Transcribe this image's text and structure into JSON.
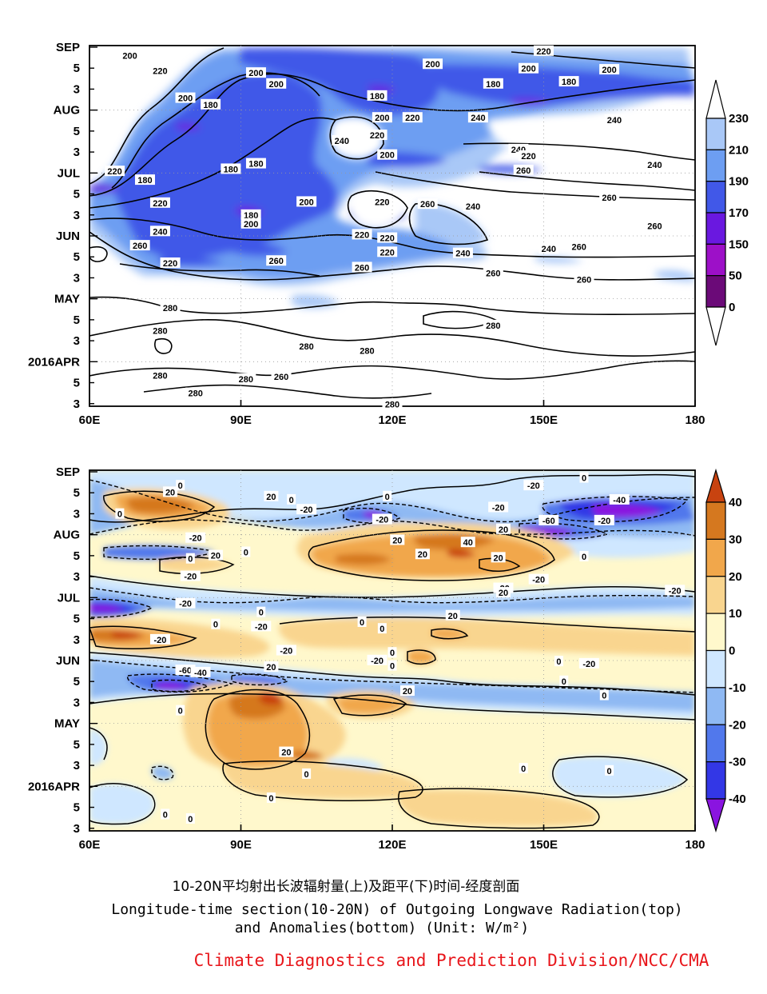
{
  "chart_data": [
    {
      "type": "heatmap",
      "title": "",
      "x_ticks": [
        "60E",
        "90E",
        "120E",
        "150E",
        "180"
      ],
      "y_ticks": [
        "SEP",
        "5",
        "3",
        "AUG",
        "5",
        "3",
        "JUL",
        "5",
        "3",
        "JUN",
        "5",
        "3",
        "MAY",
        "5",
        "3",
        "2016APR",
        "5",
        "3"
      ],
      "colorbar": {
        "levels": [
          "230",
          "210",
          "190",
          "170",
          "150",
          "50",
          "0"
        ],
        "colors": [
          "#ffffff",
          "#a9c8f7",
          "#6d9ef2",
          "#4158e8",
          "#6a18e0",
          "#9d10c8",
          "#6b0a78",
          "#ffffff"
        ]
      },
      "contour_labels": [
        {
          "text": "200",
          "x": 68,
          "y": 9
        },
        {
          "text": "200",
          "x": 93,
          "y": 25
        },
        {
          "text": "220",
          "x": 74,
          "y": 23
        },
        {
          "text": "220",
          "x": 150,
          "y": 5
        },
        {
          "text": "200",
          "x": 147,
          "y": 21
        },
        {
          "text": "180",
          "x": 140,
          "y": 35
        },
        {
          "text": "180",
          "x": 155,
          "y": 33
        },
        {
          "text": "200",
          "x": 163,
          "y": 22
        },
        {
          "text": "200",
          "x": 128,
          "y": 17
        },
        {
          "text": "200",
          "x": 97,
          "y": 35
        },
        {
          "text": "180",
          "x": 117,
          "y": 46
        },
        {
          "text": "200",
          "x": 79,
          "y": 48
        },
        {
          "text": "180",
          "x": 84,
          "y": 54
        },
        {
          "text": "200",
          "x": 118,
          "y": 66
        },
        {
          "text": "220",
          "x": 124,
          "y": 66
        },
        {
          "text": "240",
          "x": 137,
          "y": 66
        },
        {
          "text": "240",
          "x": 164,
          "y": 68
        },
        {
          "text": "240",
          "x": 110,
          "y": 87
        },
        {
          "text": "220",
          "x": 117,
          "y": 82
        },
        {
          "text": "200",
          "x": 119,
          "y": 100
        },
        {
          "text": "240",
          "x": 145,
          "y": 95
        },
        {
          "text": "220",
          "x": 147,
          "y": 101
        },
        {
          "text": "260",
          "x": 146,
          "y": 114
        },
        {
          "text": "240",
          "x": 172,
          "y": 109
        },
        {
          "text": "220",
          "x": 65,
          "y": 115
        },
        {
          "text": "180",
          "x": 71,
          "y": 123
        },
        {
          "text": "180",
          "x": 88,
          "y": 113
        },
        {
          "text": "180",
          "x": 93,
          "y": 108
        },
        {
          "text": "200",
          "x": 103,
          "y": 143
        },
        {
          "text": "220",
          "x": 74,
          "y": 144
        },
        {
          "text": "180",
          "x": 92,
          "y": 155
        },
        {
          "text": "200",
          "x": 92,
          "y": 163
        },
        {
          "text": "240",
          "x": 74,
          "y": 170
        },
        {
          "text": "220",
          "x": 118,
          "y": 143
        },
        {
          "text": "260",
          "x": 127,
          "y": 145
        },
        {
          "text": "240",
          "x": 136,
          "y": 147
        },
        {
          "text": "260",
          "x": 163,
          "y": 139
        },
        {
          "text": "260",
          "x": 172,
          "y": 165
        },
        {
          "text": "220",
          "x": 114,
          "y": 173
        },
        {
          "text": "220",
          "x": 119,
          "y": 176
        },
        {
          "text": "220",
          "x": 119,
          "y": 189
        },
        {
          "text": "240",
          "x": 134,
          "y": 190
        },
        {
          "text": "260",
          "x": 70,
          "y": 183
        },
        {
          "text": "220",
          "x": 76,
          "y": 199
        },
        {
          "text": "260",
          "x": 97,
          "y": 197
        },
        {
          "text": "260",
          "x": 114,
          "y": 203
        },
        {
          "text": "240",
          "x": 151,
          "y": 186
        },
        {
          "text": "260",
          "x": 157,
          "y": 184
        },
        {
          "text": "260",
          "x": 140,
          "y": 208
        },
        {
          "text": "260",
          "x": 158,
          "y": 214
        },
        {
          "text": "280",
          "x": 76,
          "y": 240
        },
        {
          "text": "280",
          "x": 74,
          "y": 261
        },
        {
          "text": "280",
          "x": 140,
          "y": 256
        },
        {
          "text": "280",
          "x": 103,
          "y": 275
        },
        {
          "text": "280",
          "x": 115,
          "y": 279
        },
        {
          "text": "280",
          "x": 74,
          "y": 302
        },
        {
          "text": "280",
          "x": 91,
          "y": 305
        },
        {
          "text": "260",
          "x": 98,
          "y": 303
        },
        {
          "text": "280",
          "x": 81,
          "y": 318
        },
        {
          "text": "280",
          "x": 120,
          "y": 328
        }
      ]
    },
    {
      "type": "heatmap",
      "title": "",
      "x_ticks": [
        "60E",
        "90E",
        "120E",
        "150E",
        "180"
      ],
      "y_ticks": [
        "SEP",
        "5",
        "3",
        "AUG",
        "5",
        "3",
        "JUL",
        "5",
        "3",
        "JUN",
        "5",
        "3",
        "MAY",
        "5",
        "3",
        "2016APR",
        "5",
        "3"
      ],
      "colorbar": {
        "levels": [
          "40",
          "30",
          "20",
          "10",
          "0",
          "-10",
          "-20",
          "-30",
          "-40"
        ],
        "colors": [
          "#c84310",
          "#d5781f",
          "#f1a74b",
          "#f9d58f",
          "#fff8cc",
          "#cfe7ff",
          "#8fb9f3",
          "#5178ec",
          "#3337e6",
          "#8a14e0"
        ]
      },
      "contour_labels": [
        {
          "text": "0",
          "x": 78,
          "y": 14
        },
        {
          "text": "20",
          "x": 76,
          "y": 20
        },
        {
          "text": "20",
          "x": 96,
          "y": 24
        },
        {
          "text": "0",
          "x": 100,
          "y": 27
        },
        {
          "text": "0",
          "x": 66,
          "y": 40
        },
        {
          "text": "-20",
          "x": 103,
          "y": 36
        },
        {
          "text": "0",
          "x": 119,
          "y": 24
        },
        {
          "text": "-20",
          "x": 118,
          "y": 45
        },
        {
          "text": "-20",
          "x": 148,
          "y": 14
        },
        {
          "text": "0",
          "x": 158,
          "y": 7
        },
        {
          "text": "-40",
          "x": 165,
          "y": 27
        },
        {
          "text": "-20",
          "x": 141,
          "y": 34
        },
        {
          "text": "20",
          "x": 142,
          "y": 54
        },
        {
          "text": "-60",
          "x": 151,
          "y": 46
        },
        {
          "text": "-20",
          "x": 162,
          "y": 46
        },
        {
          "text": "-20",
          "x": 81,
          "y": 62
        },
        {
          "text": "20",
          "x": 121,
          "y": 64
        },
        {
          "text": "40",
          "x": 135,
          "y": 66
        },
        {
          "text": "20",
          "x": 126,
          "y": 77
        },
        {
          "text": "20",
          "x": 141,
          "y": 80
        },
        {
          "text": "0",
          "x": 158,
          "y": 79
        },
        {
          "text": "20",
          "x": 85,
          "y": 78
        },
        {
          "text": "0",
          "x": 80,
          "y": 81
        },
        {
          "text": "0",
          "x": 91,
          "y": 75
        },
        {
          "text": "-20",
          "x": 80,
          "y": 97
        },
        {
          "text": "-20",
          "x": 79,
          "y": 122
        },
        {
          "text": "0",
          "x": 85,
          "y": 141
        },
        {
          "text": "0",
          "x": 94,
          "y": 130
        },
        {
          "text": "-20",
          "x": 94,
          "y": 143
        },
        {
          "text": "-20",
          "x": 74,
          "y": 155
        },
        {
          "text": "0",
          "x": 114,
          "y": 139
        },
        {
          "text": "20",
          "x": 132,
          "y": 133
        },
        {
          "text": "0",
          "x": 118,
          "y": 145
        },
        {
          "text": "0",
          "x": 141,
          "y": 108
        },
        {
          "text": "-20",
          "x": 142,
          "y": 108
        },
        {
          "text": "20",
          "x": 142,
          "y": 112
        },
        {
          "text": "-20",
          "x": 149,
          "y": 100
        },
        {
          "text": "-20",
          "x": 176,
          "y": 110
        },
        {
          "text": "-20",
          "x": 99,
          "y": 165
        },
        {
          "text": "-20",
          "x": 117,
          "y": 174
        },
        {
          "text": "0",
          "x": 120,
          "y": 167
        },
        {
          "text": "0",
          "x": 120,
          "y": 179
        },
        {
          "text": "-60",
          "x": 79,
          "y": 183
        },
        {
          "text": "-40",
          "x": 82,
          "y": 185
        },
        {
          "text": "20",
          "x": 96,
          "y": 180
        },
        {
          "text": "20",
          "x": 123,
          "y": 202
        },
        {
          "text": "0",
          "x": 153,
          "y": 175
        },
        {
          "text": "-20",
          "x": 159,
          "y": 177
        },
        {
          "text": "0",
          "x": 154,
          "y": 193
        },
        {
          "text": "0",
          "x": 162,
          "y": 206
        },
        {
          "text": "0",
          "x": 78,
          "y": 220
        },
        {
          "text": "20",
          "x": 99,
          "y": 258
        },
        {
          "text": "0",
          "x": 103,
          "y": 278
        },
        {
          "text": "0",
          "x": 146,
          "y": 273
        },
        {
          "text": "0",
          "x": 163,
          "y": 275
        },
        {
          "text": "0",
          "x": 96,
          "y": 300
        },
        {
          "text": "0",
          "x": 75,
          "y": 315
        },
        {
          "text": "0",
          "x": 80,
          "y": 319
        }
      ]
    }
  ],
  "caption": {
    "line1": "10-20N平均射出长波辐射量(上)及距平(下)时间-经度剖面",
    "line2": "Longitude-time section(10-20N) of Outgoing Longwave Radiation(top)",
    "line3": "and Anomalies(bottom) (Unit: W/m²)"
  },
  "credit": {
    "text": "Climate Diagnostics and Prediction Division/NCC/CMA",
    "color": "#e8161b"
  }
}
